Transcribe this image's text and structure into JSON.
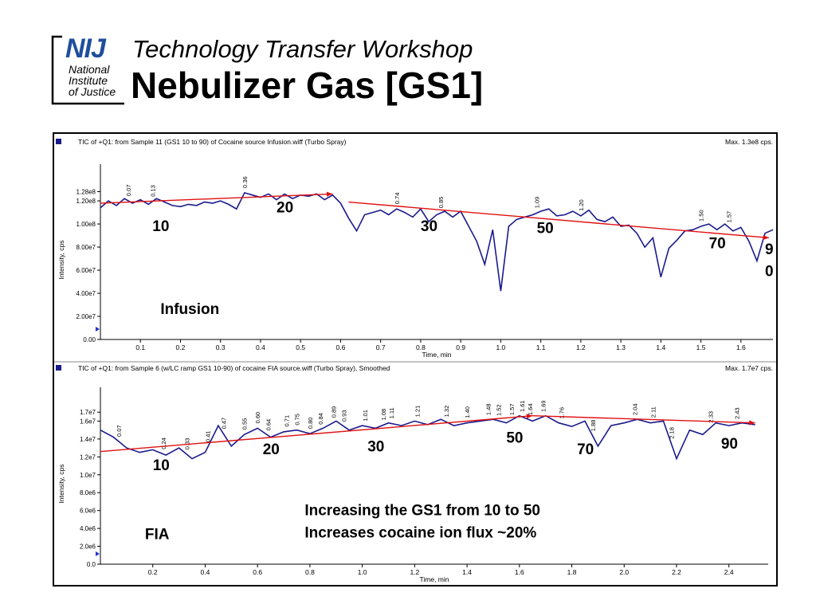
{
  "logo": {
    "acronym": "NIJ",
    "lines": [
      "National",
      "Institute",
      "of Justice"
    ]
  },
  "header": {
    "subtitle": "Technology Transfer Workshop",
    "title": "Nebulizer Gas [GS1]"
  },
  "colors": {
    "trace": "#1a1a8c",
    "trend": "#e01010",
    "logo_blue": "#1f4e9c"
  },
  "chart_data": [
    {
      "type": "line",
      "title": "TIC of +Q1: from Sample 11 (GS1 10 to 90) of Cocaine source Infusion.wiff (Turbo Spray)",
      "max_label": "Max. 1.3e8 cps.",
      "xlabel": "Time, min",
      "ylabel": "Intensity, cps",
      "xlim": [
        0,
        1.68
      ],
      "ylim": [
        0,
        138000000.0
      ],
      "x_ticks": [
        0.1,
        0.2,
        0.3,
        0.4,
        0.5,
        0.6,
        0.7,
        0.8,
        0.9,
        1.0,
        1.1,
        1.2,
        1.3,
        1.4,
        1.5,
        1.6
      ],
      "x_tick_labels": [
        "0.1",
        "0.2",
        "0.3",
        "0.4",
        "0.5",
        "0.6",
        "0.7",
        "0.8",
        "0.9",
        "1.0",
        "1.1",
        "1.2",
        "1.3",
        "1.4",
        "1.5",
        "1.6"
      ],
      "y_ticks": [
        0,
        20000000.0,
        40000000.0,
        60000000.0,
        80000000.0,
        100000000.0,
        120000000.0,
        128000000.0
      ],
      "y_tick_labels": [
        "0.00",
        "2.00e7",
        "4.00e7",
        "6.00e7",
        "8.00e7",
        "1.00e8",
        "1.20e8",
        "1.28e8"
      ],
      "peak_labels": [
        {
          "x": 0.07,
          "label": "0.07"
        },
        {
          "x": 0.13,
          "label": "0.13"
        },
        {
          "x": 0.36,
          "label": "0.36"
        },
        {
          "x": 0.74,
          "label": "0.74"
        },
        {
          "x": 0.85,
          "label": "0.85"
        },
        {
          "x": 1.09,
          "label": "1.09"
        },
        {
          "x": 1.2,
          "label": "1.20"
        },
        {
          "x": 1.5,
          "label": "1.50"
        },
        {
          "x": 1.57,
          "label": "1.57"
        }
      ],
      "series": [
        {
          "x": [
            0.0,
            0.02,
            0.04,
            0.06,
            0.08,
            0.1,
            0.12,
            0.14,
            0.16,
            0.18,
            0.2,
            0.22,
            0.24,
            0.26,
            0.28,
            0.3,
            0.32,
            0.34,
            0.36,
            0.38,
            0.4,
            0.42,
            0.44,
            0.46,
            0.48,
            0.5,
            0.52,
            0.54,
            0.56,
            0.58,
            0.6,
            0.62,
            0.64,
            0.66,
            0.68,
            0.7,
            0.72,
            0.74,
            0.76,
            0.78,
            0.8,
            0.82,
            0.84,
            0.86,
            0.88,
            0.9,
            0.92,
            0.94,
            0.96,
            0.98,
            1.0,
            1.02,
            1.04,
            1.06,
            1.08,
            1.1,
            1.12,
            1.14,
            1.16,
            1.18,
            1.2,
            1.22,
            1.24,
            1.26,
            1.28,
            1.3,
            1.32,
            1.34,
            1.36,
            1.38,
            1.4,
            1.42,
            1.44,
            1.46,
            1.48,
            1.5,
            1.52,
            1.54,
            1.56,
            1.58,
            1.6,
            1.62,
            1.64,
            1.66,
            1.68
          ],
          "values": [
            114000000.0,
            120000000.0,
            116000000.0,
            122000000.0,
            118000000.0,
            121000000.0,
            117000000.0,
            122000000.0,
            119000000.0,
            116000000.0,
            115000000.0,
            117000000.0,
            116000000.0,
            119000000.0,
            118000000.0,
            120000000.0,
            117000000.0,
            113000000.0,
            127000000.0,
            125000000.0,
            123000000.0,
            126000000.0,
            121000000.0,
            126000000.0,
            122000000.0,
            125000000.0,
            124000000.0,
            126000000.0,
            121000000.0,
            125000000.0,
            118000000.0,
            105000000.0,
            94000000.0,
            108000000.0,
            110000000.0,
            112000000.0,
            108000000.0,
            113000000.0,
            110000000.0,
            106000000.0,
            113000000.0,
            102000000.0,
            108000000.0,
            111000000.0,
            106000000.0,
            111000000.0,
            98000000.0,
            85000000.0,
            65000000.0,
            95000000.0,
            42000000.0,
            98000000.0,
            104000000.0,
            106000000.0,
            108000000.0,
            111000000.0,
            113000000.0,
            107000000.0,
            108000000.0,
            111000000.0,
            107000000.0,
            112000000.0,
            104000000.0,
            102000000.0,
            106000000.0,
            98000000.0,
            99000000.0,
            92000000.0,
            80000000.0,
            88000000.0,
            54000000.0,
            79000000.0,
            86000000.0,
            94000000.0,
            95000000.0,
            98000000.0,
            100000000.0,
            95000000.0,
            100000000.0,
            94000000.0,
            97000000.0,
            85000000.0,
            68000000.0,
            92000000.0,
            95000000.0
          ]
        }
      ],
      "trend_lines": [
        {
          "x": [
            0.0,
            0.58
          ],
          "values": [
            118000000.0,
            126000000.0
          ]
        },
        {
          "x": [
            0.62,
            1.67
          ],
          "values": [
            119000000.0,
            88000000.0
          ]
        }
      ],
      "annotations": [
        {
          "text": "10",
          "x": 0.13,
          "y": 94000000.0
        },
        {
          "text": "20",
          "x": 0.44,
          "y": 110000000.0
        },
        {
          "text": "30",
          "x": 0.8,
          "y": 94000000.0
        },
        {
          "text": "50",
          "x": 1.09,
          "y": 92000000.0
        },
        {
          "text": "70",
          "x": 1.52,
          "y": 79000000.0
        },
        {
          "text": "9",
          "x": 1.66,
          "y": 74000000.0
        },
        {
          "text": "0",
          "x": 1.66,
          "y": 55000000.0
        },
        {
          "text": "Infusion",
          "x": 0.15,
          "y": 22000000.0
        }
      ]
    },
    {
      "type": "line",
      "title": "TIC of +Q1: from Sample 6 (w/LC ramp GS1 10-90) of cocaine FIA source.wiff (Turbo Spray), Smoothed",
      "max_label": "Max. 1.7e7 cps.",
      "xlabel": "Time, min",
      "ylabel": "Intensity, cps",
      "xlim": [
        0,
        2.55
      ],
      "ylim": [
        0,
        18000000.0
      ],
      "x_ticks": [
        0.2,
        0.4,
        0.6,
        0.8,
        1.0,
        1.2,
        1.4,
        1.6,
        1.8,
        2.0,
        2.2,
        2.4
      ],
      "x_tick_labels": [
        "0.2",
        "0.4",
        "0.6",
        "0.8",
        "1.0",
        "1.2",
        "1.4",
        "1.6",
        "1.8",
        "2.0",
        "2.2",
        "2.4"
      ],
      "y_ticks": [
        0,
        2000000.0,
        4000000.0,
        6000000.0,
        8000000.0,
        10000000.0,
        12000000.0,
        14000000.0,
        16000000.0,
        17000000.0
      ],
      "y_tick_labels": [
        "0.0",
        "2.0e6",
        "4.0e6",
        "6.0e6",
        "8.0e6",
        "1.0e7",
        "1.2e7",
        "1.4e7",
        "1.6e7",
        "1.7e7"
      ],
      "peak_labels": [
        {
          "x": 0.07,
          "label": "0.07"
        },
        {
          "x": 0.24,
          "label": "0.24"
        },
        {
          "x": 0.33,
          "label": "0.33"
        },
        {
          "x": 0.41,
          "label": "0.41"
        },
        {
          "x": 0.47,
          "label": "0.47"
        },
        {
          "x": 0.55,
          "label": "0.55"
        },
        {
          "x": 0.6,
          "label": "0.60"
        },
        {
          "x": 0.64,
          "label": "0.64"
        },
        {
          "x": 0.71,
          "label": "0.71"
        },
        {
          "x": 0.75,
          "label": "0.75"
        },
        {
          "x": 0.8,
          "label": "0.80"
        },
        {
          "x": 0.84,
          "label": "0.84"
        },
        {
          "x": 0.89,
          "label": "0.89"
        },
        {
          "x": 0.93,
          "label": "0.93"
        },
        {
          "x": 1.01,
          "label": "1.01"
        },
        {
          "x": 1.08,
          "label": "1.08"
        },
        {
          "x": 1.11,
          "label": "1.11"
        },
        {
          "x": 1.21,
          "label": "1.21"
        },
        {
          "x": 1.32,
          "label": "1.32"
        },
        {
          "x": 1.4,
          "label": "1.40"
        },
        {
          "x": 1.48,
          "label": "1.48"
        },
        {
          "x": 1.52,
          "label": "1.52"
        },
        {
          "x": 1.57,
          "label": "1.57"
        },
        {
          "x": 1.61,
          "label": "1.61"
        },
        {
          "x": 1.64,
          "label": "1.64"
        },
        {
          "x": 1.69,
          "label": "1.69"
        },
        {
          "x": 1.76,
          "label": "1.76"
        },
        {
          "x": 1.88,
          "label": "1.88"
        },
        {
          "x": 2.04,
          "label": "2.04"
        },
        {
          "x": 2.11,
          "label": "2.11"
        },
        {
          "x": 2.18,
          "label": "2.18"
        },
        {
          "x": 2.33,
          "label": "2.33"
        },
        {
          "x": 2.43,
          "label": "2.43"
        }
      ],
      "series": [
        {
          "x": [
            0.0,
            0.05,
            0.1,
            0.15,
            0.2,
            0.25,
            0.3,
            0.35,
            0.4,
            0.45,
            0.5,
            0.55,
            0.6,
            0.65,
            0.7,
            0.75,
            0.8,
            0.85,
            0.9,
            0.95,
            1.0,
            1.05,
            1.1,
            1.15,
            1.2,
            1.25,
            1.3,
            1.35,
            1.4,
            1.45,
            1.5,
            1.55,
            1.6,
            1.65,
            1.7,
            1.75,
            1.8,
            1.85,
            1.9,
            1.95,
            2.0,
            2.05,
            2.1,
            2.15,
            2.2,
            2.25,
            2.3,
            2.35,
            2.4,
            2.45,
            2.5
          ],
          "values": [
            15000000.0,
            14200000.0,
            13000000.0,
            12500000.0,
            12800000.0,
            12200000.0,
            13000000.0,
            11800000.0,
            12500000.0,
            15500000.0,
            13200000.0,
            14500000.0,
            15200000.0,
            14200000.0,
            14800000.0,
            15000000.0,
            14600000.0,
            15200000.0,
            16000000.0,
            15000000.0,
            15500000.0,
            15200000.0,
            15800000.0,
            15500000.0,
            16000000.0,
            15600000.0,
            16200000.0,
            15500000.0,
            15800000.0,
            16000000.0,
            16200000.0,
            15800000.0,
            16600000.0,
            16000000.0,
            16600000.0,
            15800000.0,
            15400000.0,
            16000000.0,
            13200000.0,
            15500000.0,
            15800000.0,
            16200000.0,
            15800000.0,
            16000000.0,
            11800000.0,
            15000000.0,
            14500000.0,
            15800000.0,
            15500000.0,
            15800000.0,
            15600000.0
          ]
        }
      ],
      "trend_lines": [
        {
          "x": [
            0.0,
            1.65
          ],
          "values": [
            12600000.0,
            16600000.0
          ]
        },
        {
          "x": [
            1.65,
            2.5
          ],
          "values": [
            16600000.0,
            15800000.0
          ]
        }
      ],
      "annotations": [
        {
          "text": "10",
          "x": 0.2,
          "y": 10500000.0
        },
        {
          "text": "20",
          "x": 0.62,
          "y": 12300000.0
        },
        {
          "text": "30",
          "x": 1.02,
          "y": 12600000.0
        },
        {
          "text": "50",
          "x": 1.55,
          "y": 13600000.0
        },
        {
          "text": "70",
          "x": 1.82,
          "y": 12300000.0
        },
        {
          "text": "90",
          "x": 2.37,
          "y": 12900000.0
        },
        {
          "text": "Increasing the GS1 from 10 to 50",
          "x": 0.78,
          "y": 5500000.0
        },
        {
          "text": "Increases cocaine ion flux ~20%",
          "x": 0.78,
          "y": 3000000.0
        },
        {
          "text": "FIA",
          "x": 0.17,
          "y": 2800000.0
        }
      ]
    }
  ]
}
